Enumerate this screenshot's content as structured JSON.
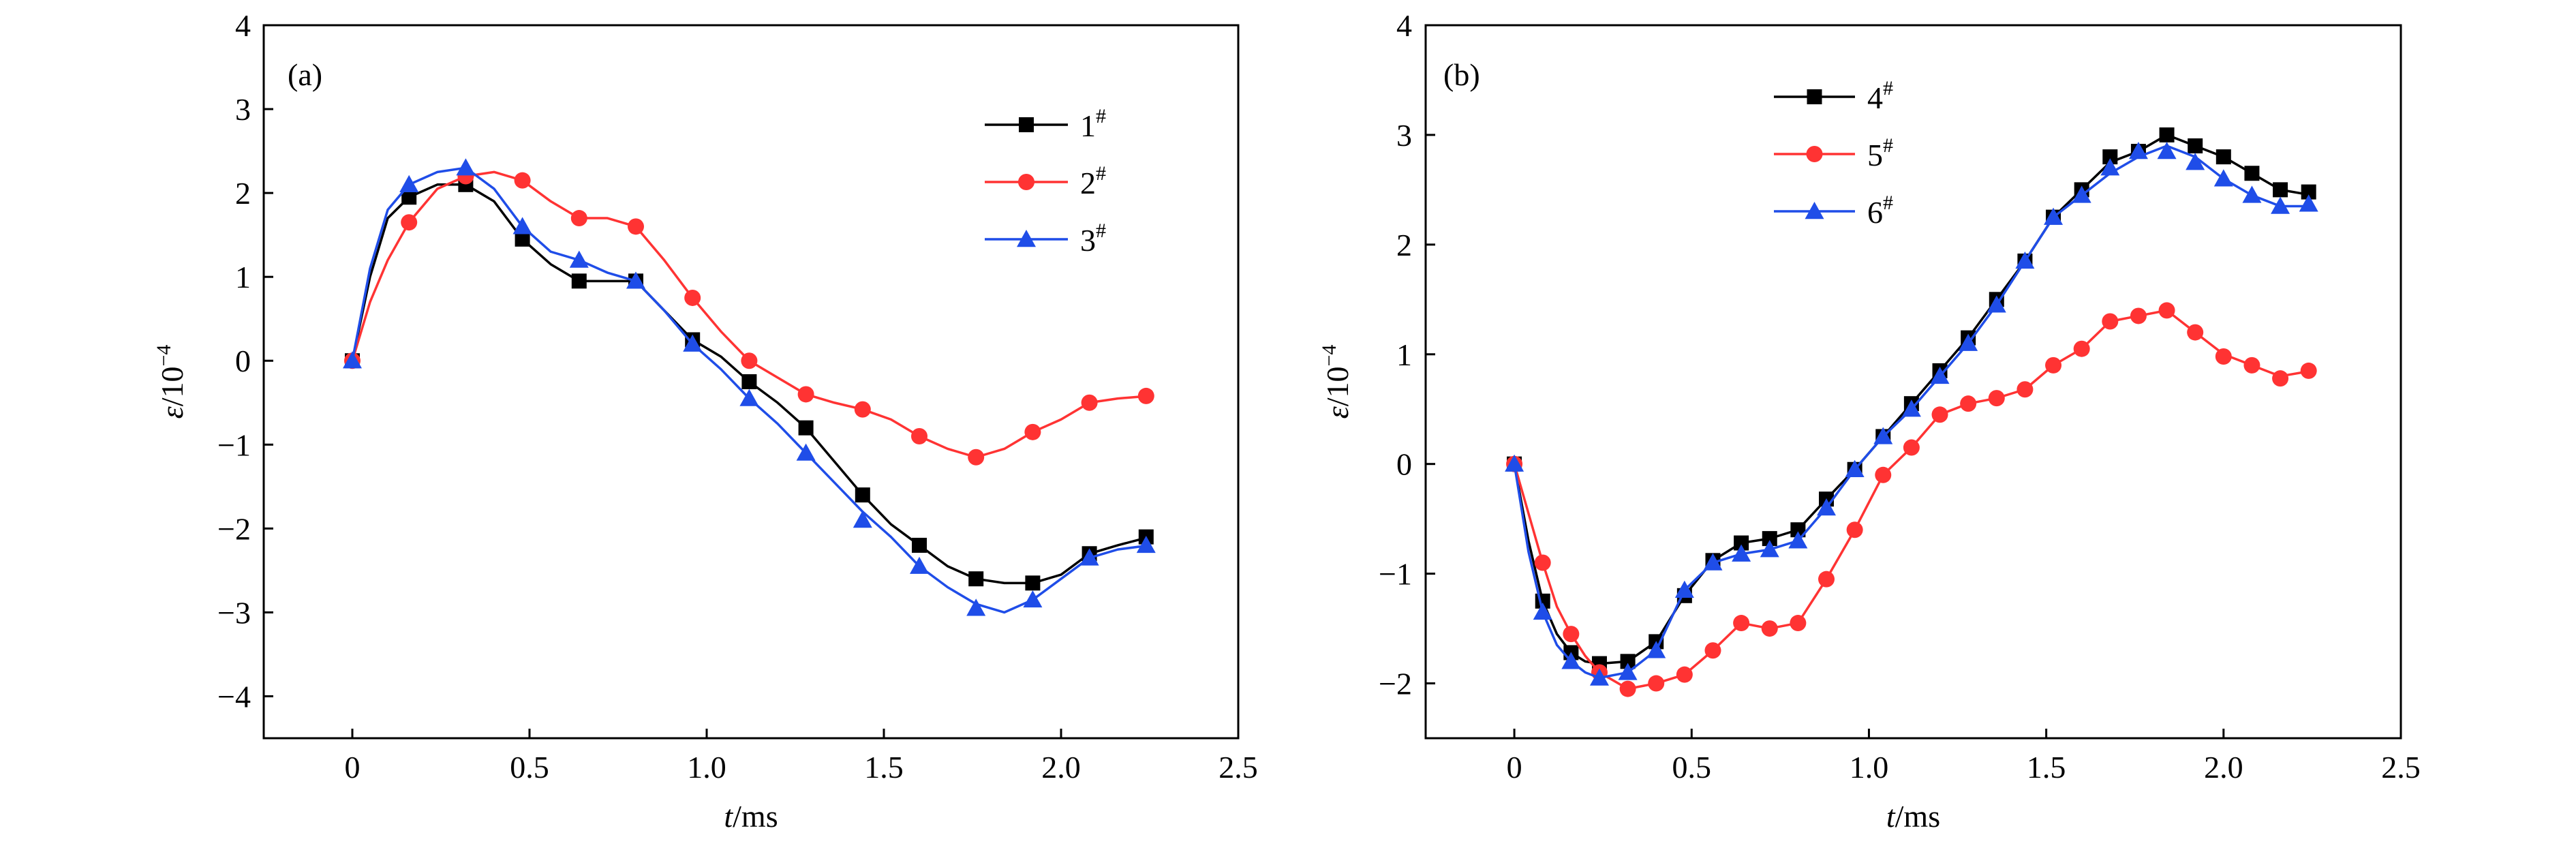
{
  "figure": {
    "background": "#ffffff"
  },
  "chart_data": [
    {
      "type": "line",
      "panel_label": "(a)",
      "xlabel_italic": "t",
      "xlabel_rest": "/ms",
      "ylabel_italic": "ε",
      "ylabel_rest": "/10",
      "ylabel_exp": "−4",
      "xlim": [
        -0.25,
        2.5
      ],
      "ylim": [
        -4.5,
        4
      ],
      "xticks": [
        0,
        0.5,
        1.0,
        1.5,
        2.0,
        2.5
      ],
      "xtick_labels": [
        "0",
        "0.5",
        "1.0",
        "1.5",
        "2.0",
        "2.5"
      ],
      "yticks": [
        -4,
        -3,
        -2,
        -1,
        0,
        1,
        2,
        3,
        4
      ],
      "ytick_labels": [
        "−4",
        "−3",
        "−2",
        "−1",
        "0",
        "1",
        "2",
        "3",
        "4"
      ],
      "legend_position": "top-right",
      "series": [
        {
          "name": "1",
          "name_sup": "#",
          "color": "#000000",
          "marker": "square",
          "x": [
            0,
            0.05,
            0.1,
            0.16,
            0.24,
            0.32,
            0.4,
            0.48,
            0.56,
            0.64,
            0.72,
            0.8,
            0.88,
            0.96,
            1.04,
            1.12,
            1.2,
            1.28,
            1.36,
            1.44,
            1.52,
            1.6,
            1.68,
            1.76,
            1.84,
            1.92,
            2.0,
            2.08,
            2.16,
            2.25
          ],
          "y": [
            0,
            1.0,
            1.7,
            1.95,
            2.1,
            2.1,
            1.9,
            1.45,
            1.15,
            0.95,
            0.95,
            0.95,
            0.6,
            0.25,
            0.05,
            -0.25,
            -0.5,
            -0.8,
            -1.2,
            -1.6,
            -1.95,
            -2.2,
            -2.45,
            -2.6,
            -2.65,
            -2.65,
            -2.55,
            -2.3,
            -2.2,
            -2.1
          ],
          "marker_x": [
            0,
            0.16,
            0.32,
            0.48,
            0.64,
            0.8,
            0.96,
            1.12,
            1.28,
            1.44,
            1.6,
            1.76,
            1.92,
            2.08,
            2.24
          ],
          "marker_y": [
            0,
            1.95,
            2.1,
            1.45,
            0.95,
            0.95,
            0.25,
            -0.25,
            -0.8,
            -1.6,
            -2.2,
            -2.6,
            -2.65,
            -2.3,
            -2.1
          ]
        },
        {
          "name": "2",
          "name_sup": "#",
          "color": "#ff3333",
          "marker": "circle",
          "x": [
            0,
            0.05,
            0.1,
            0.16,
            0.24,
            0.32,
            0.4,
            0.48,
            0.56,
            0.64,
            0.72,
            0.8,
            0.88,
            0.96,
            1.04,
            1.12,
            1.2,
            1.28,
            1.36,
            1.44,
            1.52,
            1.6,
            1.68,
            1.76,
            1.84,
            1.92,
            2.0,
            2.08,
            2.16,
            2.25
          ],
          "y": [
            0,
            0.7,
            1.2,
            1.65,
            2.05,
            2.2,
            2.25,
            2.15,
            1.9,
            1.7,
            1.7,
            1.6,
            1.2,
            0.75,
            0.35,
            0.0,
            -0.2,
            -0.4,
            -0.5,
            -0.58,
            -0.7,
            -0.9,
            -1.05,
            -1.15,
            -1.05,
            -0.85,
            -0.7,
            -0.5,
            -0.45,
            -0.42
          ],
          "marker_x": [
            0,
            0.16,
            0.32,
            0.48,
            0.64,
            0.8,
            0.96,
            1.12,
            1.28,
            1.44,
            1.6,
            1.76,
            1.92,
            2.08,
            2.24
          ],
          "marker_y": [
            0,
            1.65,
            2.2,
            2.15,
            1.7,
            1.6,
            0.75,
            0.0,
            -0.4,
            -0.58,
            -0.9,
            -1.15,
            -0.85,
            -0.5,
            -0.42
          ]
        },
        {
          "name": "3",
          "name_sup": "#",
          "color": "#1f4de8",
          "marker": "triangle",
          "x": [
            0,
            0.05,
            0.1,
            0.16,
            0.24,
            0.32,
            0.4,
            0.48,
            0.56,
            0.64,
            0.72,
            0.8,
            0.88,
            0.96,
            1.04,
            1.12,
            1.2,
            1.28,
            1.36,
            1.44,
            1.52,
            1.6,
            1.68,
            1.76,
            1.84,
            1.92,
            2.0,
            2.08,
            2.16,
            2.25
          ],
          "y": [
            0,
            1.1,
            1.8,
            2.1,
            2.25,
            2.3,
            2.05,
            1.6,
            1.3,
            1.2,
            1.05,
            0.95,
            0.6,
            0.2,
            -0.1,
            -0.45,
            -0.75,
            -1.1,
            -1.45,
            -1.8,
            -2.1,
            -2.45,
            -2.7,
            -2.9,
            -3.0,
            -2.85,
            -2.6,
            -2.35,
            -2.25,
            -2.2
          ],
          "marker_x": [
            0,
            0.16,
            0.32,
            0.48,
            0.64,
            0.8,
            0.96,
            1.12,
            1.28,
            1.44,
            1.6,
            1.76,
            1.92,
            2.08,
            2.24
          ],
          "marker_y": [
            0,
            2.1,
            2.3,
            1.6,
            1.2,
            0.95,
            0.2,
            -0.45,
            -1.1,
            -1.9,
            -2.45,
            -2.95,
            -2.85,
            -2.35,
            -2.2
          ]
        }
      ]
    },
    {
      "type": "line",
      "panel_label": "(b)",
      "xlabel_italic": "t",
      "xlabel_rest": "/ms",
      "ylabel_italic": "ε",
      "ylabel_rest": "/10",
      "ylabel_exp": "−4",
      "xlim": [
        -0.25,
        2.5
      ],
      "ylim": [
        -2.5,
        4
      ],
      "xticks": [
        0,
        0.5,
        1.0,
        1.5,
        2.0,
        2.5
      ],
      "xtick_labels": [
        "0",
        "0.5",
        "1.0",
        "1.5",
        "2.0",
        "2.5"
      ],
      "yticks": [
        -2,
        -1,
        0,
        1,
        2,
        3,
        4
      ],
      "ytick_labels": [
        "−2",
        "−1",
        "0",
        "1",
        "2",
        "3",
        "4"
      ],
      "legend_position": "top-left",
      "series": [
        {
          "name": "4",
          "name_sup": "#",
          "color": "#000000",
          "marker": "square",
          "x": [
            0,
            0.04,
            0.08,
            0.12,
            0.16,
            0.2,
            0.24,
            0.32,
            0.4,
            0.48,
            0.56,
            0.64,
            0.72,
            0.8,
            0.88,
            0.96,
            1.04,
            1.12,
            1.2,
            1.28,
            1.36,
            1.44,
            1.52,
            1.6,
            1.68,
            1.76,
            1.84,
            1.92,
            2.0,
            2.08,
            2.16,
            2.25
          ],
          "y": [
            0,
            -0.7,
            -1.25,
            -1.55,
            -1.72,
            -1.8,
            -1.82,
            -1.8,
            -1.62,
            -1.2,
            -0.88,
            -0.72,
            -0.68,
            -0.6,
            -0.32,
            -0.05,
            0.25,
            0.55,
            0.85,
            1.15,
            1.5,
            1.85,
            2.25,
            2.5,
            2.75,
            2.85,
            3.0,
            2.9,
            2.8,
            2.65,
            2.5,
            2.45
          ],
          "marker_x": [
            0,
            0.08,
            0.16,
            0.24,
            0.32,
            0.4,
            0.48,
            0.56,
            0.64,
            0.72,
            0.8,
            0.88,
            0.96,
            1.04,
            1.12,
            1.2,
            1.28,
            1.36,
            1.44,
            1.52,
            1.6,
            1.68,
            1.76,
            1.84,
            1.92,
            2.0,
            2.08,
            2.16,
            2.24
          ],
          "marker_y": [
            0,
            -1.25,
            -1.72,
            -1.82,
            -1.8,
            -1.62,
            -1.2,
            -0.88,
            -0.72,
            -0.68,
            -0.6,
            -0.32,
            -0.05,
            0.25,
            0.55,
            0.85,
            1.15,
            1.5,
            1.85,
            2.25,
            2.5,
            2.8,
            2.85,
            3.0,
            2.9,
            2.8,
            2.65,
            2.5,
            2.48
          ]
        },
        {
          "name": "5",
          "name_sup": "#",
          "color": "#ff3333",
          "marker": "circle",
          "x": [
            0,
            0.04,
            0.08,
            0.12,
            0.16,
            0.2,
            0.24,
            0.32,
            0.4,
            0.48,
            0.56,
            0.64,
            0.72,
            0.8,
            0.88,
            0.96,
            1.04,
            1.12,
            1.2,
            1.28,
            1.36,
            1.44,
            1.52,
            1.6,
            1.68,
            1.76,
            1.84,
            1.92,
            2.0,
            2.08,
            2.16,
            2.25
          ],
          "y": [
            0,
            -0.45,
            -0.9,
            -1.3,
            -1.55,
            -1.75,
            -1.9,
            -2.05,
            -2.0,
            -1.92,
            -1.7,
            -1.45,
            -1.5,
            -1.45,
            -1.05,
            -0.6,
            -0.1,
            0.15,
            0.45,
            0.55,
            0.6,
            0.68,
            0.9,
            1.05,
            1.3,
            1.35,
            1.4,
            1.2,
            1.0,
            0.9,
            0.8,
            0.85
          ],
          "marker_x": [
            0,
            0.08,
            0.16,
            0.24,
            0.32,
            0.4,
            0.48,
            0.56,
            0.64,
            0.72,
            0.8,
            0.88,
            0.96,
            1.04,
            1.12,
            1.2,
            1.28,
            1.36,
            1.44,
            1.52,
            1.6,
            1.68,
            1.76,
            1.84,
            1.92,
            2.0,
            2.08,
            2.16,
            2.24
          ],
          "marker_y": [
            0,
            -0.9,
            -1.55,
            -1.9,
            -2.05,
            -2.0,
            -1.92,
            -1.7,
            -1.45,
            -1.5,
            -1.45,
            -1.05,
            -0.6,
            -0.1,
            0.15,
            0.45,
            0.55,
            0.6,
            0.68,
            0.9,
            1.05,
            1.3,
            1.35,
            1.4,
            1.2,
            0.98,
            0.9,
            0.78,
            0.85
          ]
        },
        {
          "name": "6",
          "name_sup": "#",
          "color": "#1f4de8",
          "marker": "triangle",
          "x": [
            0,
            0.04,
            0.08,
            0.12,
            0.16,
            0.2,
            0.24,
            0.32,
            0.4,
            0.48,
            0.56,
            0.64,
            0.72,
            0.8,
            0.88,
            0.96,
            1.04,
            1.12,
            1.2,
            1.28,
            1.36,
            1.44,
            1.52,
            1.6,
            1.68,
            1.76,
            1.84,
            1.92,
            2.0,
            2.08,
            2.16,
            2.25
          ],
          "y": [
            0,
            -0.8,
            -1.35,
            -1.65,
            -1.8,
            -1.9,
            -1.95,
            -1.9,
            -1.7,
            -1.15,
            -0.9,
            -0.82,
            -0.78,
            -0.7,
            -0.4,
            -0.05,
            0.25,
            0.5,
            0.8,
            1.1,
            1.45,
            1.85,
            2.25,
            2.45,
            2.65,
            2.8,
            2.9,
            2.8,
            2.6,
            2.45,
            2.35,
            2.35
          ],
          "marker_x": [
            0,
            0.08,
            0.16,
            0.24,
            0.32,
            0.4,
            0.48,
            0.56,
            0.64,
            0.72,
            0.8,
            0.88,
            0.96,
            1.04,
            1.12,
            1.2,
            1.28,
            1.36,
            1.44,
            1.52,
            1.6,
            1.68,
            1.76,
            1.84,
            1.92,
            2.0,
            2.08,
            2.16,
            2.24
          ],
          "marker_y": [
            0,
            -1.35,
            -1.8,
            -1.95,
            -1.9,
            -1.7,
            -1.15,
            -0.9,
            -0.82,
            -0.78,
            -0.7,
            -0.4,
            -0.05,
            0.25,
            0.5,
            0.8,
            1.1,
            1.45,
            1.85,
            2.25,
            2.45,
            2.7,
            2.85,
            2.85,
            2.75,
            2.6,
            2.45,
            2.35,
            2.37
          ]
        }
      ]
    }
  ]
}
